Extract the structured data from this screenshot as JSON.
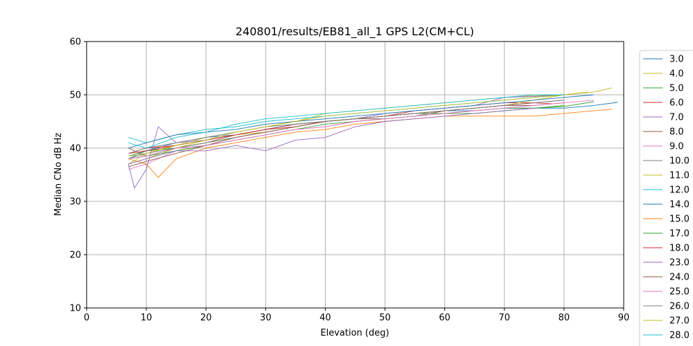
{
  "chart_data": {
    "type": "line",
    "title": "240801/results/EB81_all_1 GPS L2(CM+CL)",
    "xlabel": "Elevation (deg)",
    "ylabel": "Median CNo dB Hz",
    "xlim": [
      0,
      90
    ],
    "ylim": [
      10,
      60
    ],
    "xticks": [
      "0",
      "10",
      "20",
      "30",
      "40",
      "50",
      "60",
      "70",
      "80",
      "90"
    ],
    "yticks": [
      "10",
      "20",
      "30",
      "40",
      "50",
      "60"
    ],
    "grid": true,
    "legend_position": "right, outside plot (clipped at bottom)",
    "series": [
      {
        "name": "3.0",
        "color": "#1f77b4",
        "x": [
          7,
          10,
          15,
          20,
          25,
          30,
          35,
          40,
          45,
          50,
          55,
          60,
          65,
          70,
          75,
          80,
          85,
          89
        ],
        "y": [
          38,
          39.5,
          41,
          42,
          42.5,
          43.5,
          44.5,
          45,
          45.5,
          46,
          46.5,
          47,
          47,
          47.5,
          47.5,
          47.5,
          48,
          48.6
        ]
      },
      {
        "name": "4.0",
        "color": "#bcbd22",
        "x": [
          7,
          10,
          15,
          20,
          25,
          30,
          35,
          40,
          45,
          50,
          55,
          60,
          65,
          70,
          75,
          80,
          85,
          88
        ],
        "y": [
          37,
          39,
          40.5,
          42,
          43,
          44,
          45,
          46.5,
          47,
          47.5,
          48,
          48.5,
          49,
          49.5,
          49.8,
          50,
          50.5,
          51.3
        ]
      },
      {
        "name": "5.0",
        "color": "#2ca02c",
        "x": [
          7,
          10,
          15,
          20,
          25,
          30,
          35,
          40,
          45,
          50,
          55,
          60,
          65,
          70,
          75,
          80,
          85
        ],
        "y": [
          38.5,
          39.5,
          40,
          41,
          42,
          43,
          44,
          45,
          45.5,
          46,
          46.5,
          46.5,
          47,
          47.5,
          47.5,
          47.8,
          48.7
        ]
      },
      {
        "name": "6.0",
        "color": "#d62728",
        "x": [
          7,
          10,
          15,
          20,
          25,
          30,
          35,
          40,
          45,
          50,
          55,
          60,
          65,
          70,
          75
        ],
        "y": [
          39,
          40,
          40.5,
          41.5,
          42.5,
          43.5,
          44.5,
          45,
          45.5,
          46,
          47,
          47.5,
          48,
          48.5,
          48.5
        ]
      },
      {
        "name": "7.0",
        "color": "#9467bd",
        "x": [
          7,
          8,
          10,
          12,
          15,
          20,
          25,
          30,
          35,
          40,
          45,
          50,
          55,
          60,
          65,
          70,
          75,
          80
        ],
        "y": [
          37,
          32.5,
          36,
          44,
          41,
          41.5,
          42.5,
          43.5,
          44.5,
          45,
          45.5,
          46.5,
          47,
          47.5,
          48,
          49.5,
          49.7,
          50
        ]
      },
      {
        "name": "8.0",
        "color": "#8c564b",
        "x": [
          7,
          10,
          15,
          20,
          25,
          30,
          35,
          40,
          45,
          50,
          55,
          60,
          65,
          70,
          75,
          80
        ],
        "y": [
          40,
          38.5,
          40,
          41,
          42.5,
          43.5,
          44.5,
          45,
          45.5,
          45.5,
          46,
          47,
          47.5,
          48,
          48.5,
          49
        ]
      },
      {
        "name": "9.0",
        "color": "#e377c2",
        "x": [
          7,
          10,
          15,
          20,
          25,
          30,
          35,
          40,
          45,
          50,
          55,
          60,
          65,
          70,
          75,
          80,
          85
        ],
        "y": [
          36,
          37,
          39.5,
          40.5,
          41.5,
          42.5,
          43.5,
          44,
          45,
          45.5,
          46,
          46.5,
          47,
          47.5,
          48,
          48.5,
          49
        ]
      },
      {
        "name": "10.0",
        "color": "#7f7f7f",
        "x": [
          7,
          10,
          15,
          20,
          25,
          30,
          35,
          40,
          45,
          50,
          55,
          60,
          65,
          70,
          75,
          80
        ],
        "y": [
          38,
          39,
          40,
          41,
          42,
          43,
          44,
          45,
          45.5,
          46,
          46.5,
          47,
          47.5,
          48,
          48.5,
          49
        ]
      },
      {
        "name": "11.0",
        "color": "#bcbd22",
        "x": [
          7,
          10,
          15,
          20,
          25,
          30,
          35,
          40,
          45,
          50,
          55,
          60,
          65,
          70,
          75,
          80,
          84
        ],
        "y": [
          37,
          38,
          40,
          41.5,
          42.5,
          43,
          44,
          45,
          45.5,
          46,
          46.5,
          47,
          47.5,
          48,
          49,
          50,
          50.5
        ]
      },
      {
        "name": "12.0",
        "color": "#17becf",
        "x": [
          7,
          10,
          15,
          20,
          25,
          30,
          35,
          40,
          45,
          50,
          55,
          60,
          65,
          70,
          75,
          80
        ],
        "y": [
          42,
          41,
          42.5,
          43.5,
          44,
          45,
          45.5,
          46,
          46.5,
          47,
          47.5,
          48,
          48.5,
          49,
          49.5,
          50
        ]
      },
      {
        "name": "14.0",
        "color": "#1f77b4",
        "x": [
          7,
          10,
          15,
          20,
          25,
          30,
          35,
          40,
          45,
          50,
          55,
          60,
          65,
          70,
          75,
          80,
          85
        ],
        "y": [
          40,
          41,
          42.5,
          43,
          43.5,
          44.5,
          45,
          45.5,
          46,
          46.5,
          47,
          47.5,
          48,
          48.5,
          49,
          49.5,
          50
        ]
      },
      {
        "name": "15.0",
        "color": "#ff7f0e",
        "x": [
          7,
          10,
          12,
          15,
          20,
          25,
          30,
          35,
          40,
          45,
          50,
          55,
          60,
          65,
          70,
          75,
          80,
          85,
          88
        ],
        "y": [
          38,
          37,
          34.5,
          38,
          40,
          41,
          42,
          43,
          43.5,
          44.5,
          45,
          45.5,
          46,
          46,
          46,
          46,
          46.5,
          47,
          47.3
        ]
      },
      {
        "name": "17.0",
        "color": "#2ca02c",
        "x": [
          7,
          10,
          15,
          20,
          25,
          30,
          35,
          40,
          45,
          50,
          55,
          60,
          65,
          70,
          75,
          80
        ],
        "y": [
          38,
          38.5,
          39.5,
          40.5,
          41.5,
          42.5,
          43.5,
          44.5,
          45,
          45.5,
          46,
          46.5,
          46.5,
          47,
          47.5,
          48
        ]
      },
      {
        "name": "18.0",
        "color": "#d62728",
        "x": [
          7,
          10,
          15,
          20,
          25,
          30,
          35,
          40,
          45,
          50,
          55,
          60,
          65,
          70,
          75,
          78
        ],
        "y": [
          39,
          39.5,
          40.5,
          41.5,
          42.5,
          43.5,
          44,
          45,
          45.5,
          46,
          46.5,
          47,
          47.5,
          48,
          48.5,
          48.3
        ]
      },
      {
        "name": "23.0",
        "color": "#9467bd",
        "x": [
          7,
          10,
          15,
          20,
          25,
          30,
          35,
          40,
          45,
          50,
          55,
          60,
          65,
          70,
          75
        ],
        "y": [
          37,
          38,
          39.5,
          39.5,
          40.5,
          39.5,
          41.5,
          42,
          44,
          45,
          45.5,
          46,
          46.5,
          47,
          47.5
        ]
      },
      {
        "name": "24.0",
        "color": "#8c564b",
        "x": [
          7,
          10,
          15,
          20,
          25,
          30,
          35,
          40,
          45,
          50,
          55,
          60,
          65,
          70,
          75,
          80
        ],
        "y": [
          36.5,
          37.5,
          39,
          40.5,
          42,
          43,
          44,
          45,
          45.5,
          46,
          46.5,
          47,
          47.5,
          48,
          48,
          48.5
        ]
      },
      {
        "name": "25.0",
        "color": "#e377c2",
        "x": [
          7,
          10,
          15,
          20,
          25,
          30,
          35,
          40,
          45,
          50,
          55,
          60,
          65,
          70,
          75,
          80
        ],
        "y": [
          38,
          38.5,
          40,
          40.5,
          41.5,
          42.5,
          43.5,
          44,
          45,
          45.5,
          46,
          46.5,
          47,
          47.5,
          48,
          48.5
        ]
      },
      {
        "name": "26.0",
        "color": "#7f7f7f",
        "x": [
          7,
          10,
          15,
          20,
          25,
          30,
          35,
          40,
          45,
          50,
          55,
          60,
          65,
          70,
          75,
          80
        ],
        "y": [
          39,
          40,
          41,
          42,
          43,
          44,
          44.5,
          45,
          45.5,
          46,
          46.5,
          47,
          47.5,
          48,
          48.5,
          49
        ]
      },
      {
        "name": "27.0",
        "color": "#bcbd22",
        "x": [
          7,
          10,
          15,
          20,
          25,
          30,
          35,
          40,
          45,
          50,
          55,
          60,
          65,
          70,
          75,
          80
        ],
        "y": [
          38.5,
          39,
          40.5,
          41.5,
          43,
          44,
          45,
          46,
          46.5,
          47,
          47.5,
          48,
          48.5,
          49,
          49.5,
          50
        ]
      },
      {
        "name": "28.0",
        "color": "#17becf",
        "x": [
          7,
          10,
          15,
          20,
          25,
          30,
          35,
          40,
          45,
          50,
          55,
          60,
          65,
          70,
          75,
          80
        ],
        "y": [
          41,
          40,
          42,
          43,
          44.5,
          45.5,
          46,
          46.5,
          47,
          47.5,
          48,
          48.5,
          49,
          49.5,
          50,
          50
        ]
      }
    ]
  }
}
